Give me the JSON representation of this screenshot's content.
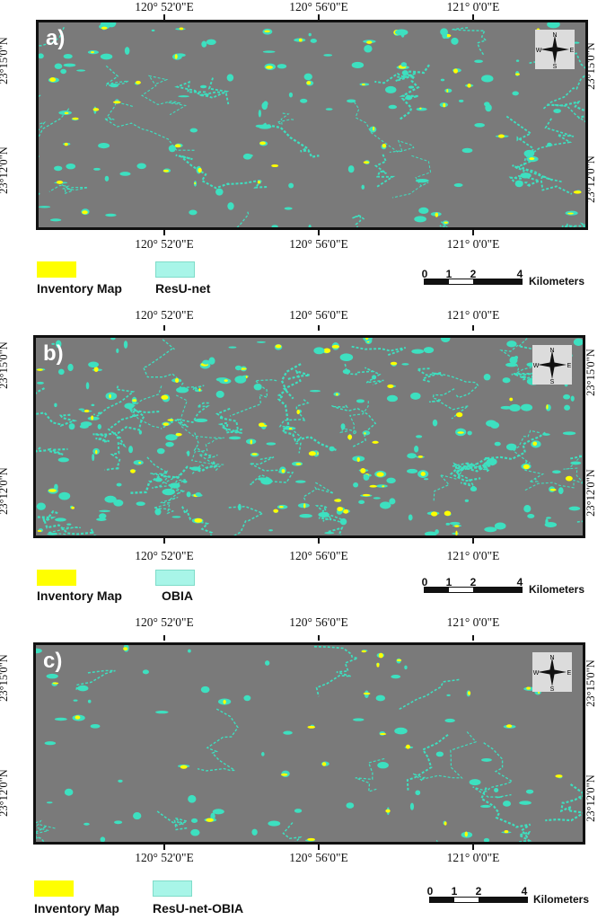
{
  "colors": {
    "background_gray": "#7a7a7a",
    "inventory": "#ffff00",
    "model_prediction": "#3de0c0",
    "model_legend_fill": "#a8f5e8"
  },
  "longitudes": [
    "120° 52'0\"E",
    "120° 56'0\"E",
    "121° 0'0\"E"
  ],
  "latitudes": [
    "23°15'0\"N",
    "23°12'0\"N"
  ],
  "north_arrow": {
    "icon": "north-arrow-icon",
    "n": "N",
    "s": "S",
    "e": "E",
    "w": "W"
  },
  "scale": {
    "ticks": [
      "0",
      "1",
      "2",
      "4"
    ],
    "unit": "Kilometers"
  },
  "panels": [
    {
      "label": "a)",
      "legend": {
        "inventory": "Inventory Map",
        "model": "ResU-net"
      }
    },
    {
      "label": "b)",
      "legend": {
        "inventory": "Inventory Map",
        "model": "OBIA"
      }
    },
    {
      "label": "c)",
      "legend": {
        "inventory": "Inventory Map",
        "model": "ResU-net-OBIA"
      }
    }
  ]
}
